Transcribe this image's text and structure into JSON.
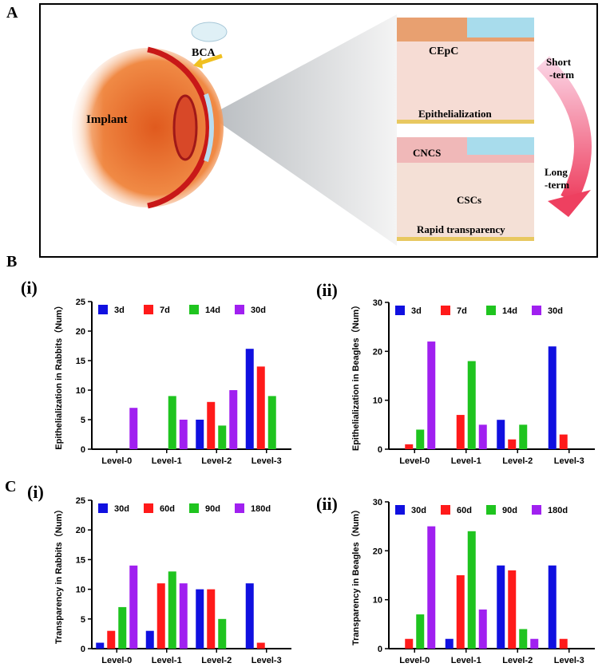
{
  "figure": {
    "panels": [
      "A",
      "B",
      "C"
    ],
    "subpanels": [
      "(i)",
      "(ii)",
      "(i)",
      "(ii)"
    ],
    "diagram": {
      "bca": "BCA",
      "implant": "Implant",
      "cepc": "CEpC",
      "epithelialization": "Epithelialization",
      "cncs": "CNCS",
      "cscs": "CSCs",
      "rapid": "Rapid transparency",
      "short": [
        "Short",
        "-term"
      ],
      "long": [
        "Long",
        "-term"
      ]
    }
  },
  "chart_data": [
    {
      "type": "bar",
      "ylabel": "Epithelialization in Rabbits（Num）",
      "categories": [
        "Level-0",
        "Level-1",
        "Level-2",
        "Level-3"
      ],
      "series": [
        {
          "name": "3d",
          "color": "#1010e0",
          "values": [
            0,
            0,
            5,
            17
          ]
        },
        {
          "name": "7d",
          "color": "#ff1a1a",
          "values": [
            0,
            0,
            8,
            14
          ]
        },
        {
          "name": "14d",
          "color": "#1fc41f",
          "values": [
            0,
            9,
            4,
            9
          ]
        },
        {
          "name": "30d",
          "color": "#a020f0",
          "values": [
            7,
            5,
            10,
            0
          ]
        }
      ],
      "ylim": [
        0,
        25
      ],
      "yticks": [
        0,
        5,
        10,
        15,
        20,
        25
      ]
    },
    {
      "type": "bar",
      "ylabel": "Epithelialization in Beagles（Num）",
      "categories": [
        "Level-0",
        "Level-1",
        "Level-2",
        "Level-3"
      ],
      "series": [
        {
          "name": "3d",
          "color": "#1010e0",
          "values": [
            0,
            0,
            6,
            21
          ]
        },
        {
          "name": "7d",
          "color": "#ff1a1a",
          "values": [
            1,
            7,
            2,
            3
          ]
        },
        {
          "name": "14d",
          "color": "#1fc41f",
          "values": [
            4,
            18,
            5,
            0
          ]
        },
        {
          "name": "30d",
          "color": "#a020f0",
          "values": [
            22,
            5,
            0,
            0
          ]
        }
      ],
      "ylim": [
        0,
        30
      ],
      "yticks": [
        0,
        10,
        20,
        30
      ]
    },
    {
      "type": "bar",
      "ylabel": "Transparency in Rabbits（Num）",
      "categories": [
        "Level-0",
        "Level-1",
        "Level-2",
        "Level-3"
      ],
      "series": [
        {
          "name": "30d",
          "color": "#1010e0",
          "values": [
            1,
            3,
            10,
            11
          ]
        },
        {
          "name": "60d",
          "color": "#ff1a1a",
          "values": [
            3,
            11,
            10,
            1
          ]
        },
        {
          "name": "90d",
          "color": "#1fc41f",
          "values": [
            7,
            13,
            5,
            0
          ]
        },
        {
          "name": "180d",
          "color": "#a020f0",
          "values": [
            14,
            11,
            0,
            0
          ]
        }
      ],
      "ylim": [
        0,
        25
      ],
      "yticks": [
        0,
        5,
        10,
        15,
        20,
        25
      ]
    },
    {
      "type": "bar",
      "ylabel": "Transparency in Beagles（Num）",
      "categories": [
        "Level-0",
        "Level-1",
        "Level-2",
        "Level-3"
      ],
      "series": [
        {
          "name": "30d",
          "color": "#1010e0",
          "values": [
            0,
            2,
            17,
            17
          ]
        },
        {
          "name": "60d",
          "color": "#ff1a1a",
          "values": [
            2,
            15,
            16,
            2
          ]
        },
        {
          "name": "90d",
          "color": "#1fc41f",
          "values": [
            7,
            24,
            4,
            0
          ]
        },
        {
          "name": "180d",
          "color": "#a020f0",
          "values": [
            25,
            8,
            2,
            0
          ]
        }
      ],
      "ylim": [
        0,
        30
      ],
      "yticks": [
        0,
        10,
        20,
        30
      ]
    }
  ]
}
